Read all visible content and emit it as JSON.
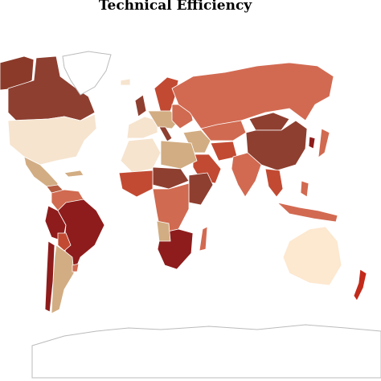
{
  "title": "Technical Efficiency"
}
